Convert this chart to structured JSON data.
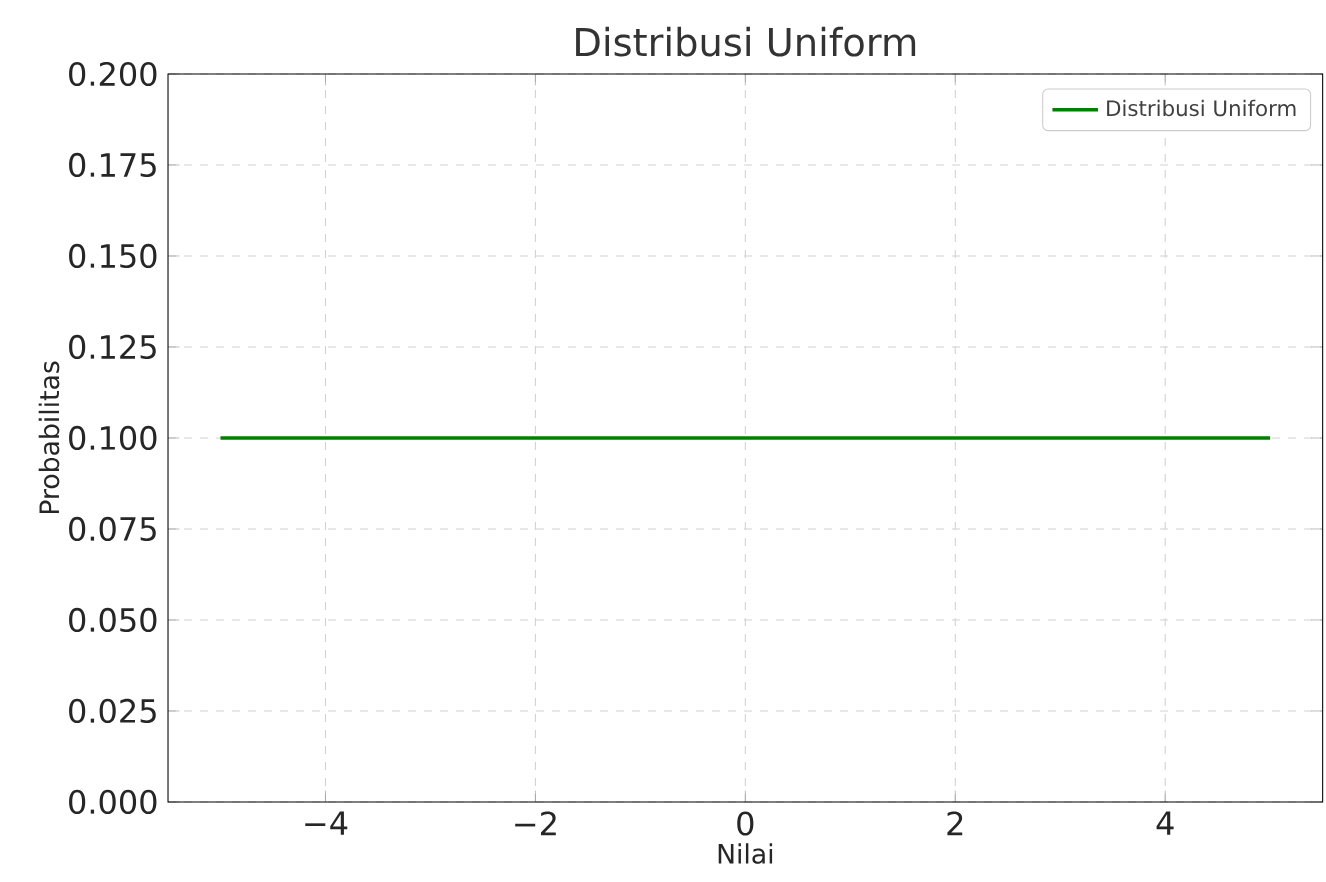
{
  "chart_data": {
    "type": "line",
    "title": "Distribusi Uniform",
    "xlabel": "Nilai",
    "ylabel": "Probabilitas",
    "x": [
      -5,
      5
    ],
    "series": [
      {
        "name": "Distribusi Uniform",
        "color": "#008000",
        "values": [
          0.1,
          0.1
        ]
      }
    ],
    "xlim": [
      -5.5,
      5.5
    ],
    "xticks": [
      {
        "value": -4,
        "label": "−4"
      },
      {
        "value": -2,
        "label": "−2"
      },
      0,
      2,
      4
    ],
    "ylim": [
      0,
      0.2
    ],
    "yticks": [
      {
        "value": 0,
        "label": "0.000"
      },
      {
        "value": 0.025,
        "label": "0.025"
      },
      {
        "value": 0.05,
        "label": "0.050"
      },
      {
        "value": 0.075,
        "label": "0.075"
      },
      {
        "value": 0.1,
        "label": "0.100"
      },
      {
        "value": 0.125,
        "label": "0.125"
      },
      {
        "value": 0.15,
        "label": "0.150"
      },
      {
        "value": 0.175,
        "label": "0.175"
      },
      {
        "value": 0.2,
        "label": "0.200"
      }
    ],
    "grid": true,
    "legend": "top right",
    "marker": "none",
    "line_style": "solid"
  }
}
